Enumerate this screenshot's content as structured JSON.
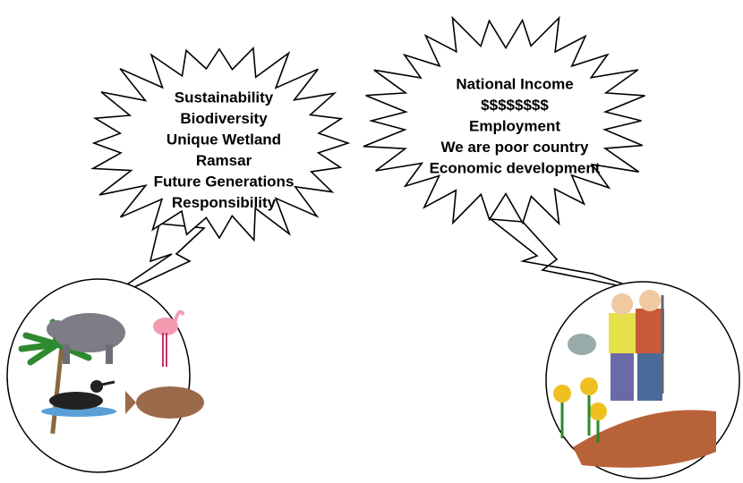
{
  "left_bubble": {
    "lines": [
      "Sustainability",
      "Biodiversity",
      "Unique Wetland",
      "Ramsar",
      "Future Generations",
      "Responsibility"
    ]
  },
  "right_bubble": {
    "lines": [
      "National Income",
      "$$$$$$$$",
      "Employment",
      "We are poor country",
      "Economic development"
    ]
  }
}
